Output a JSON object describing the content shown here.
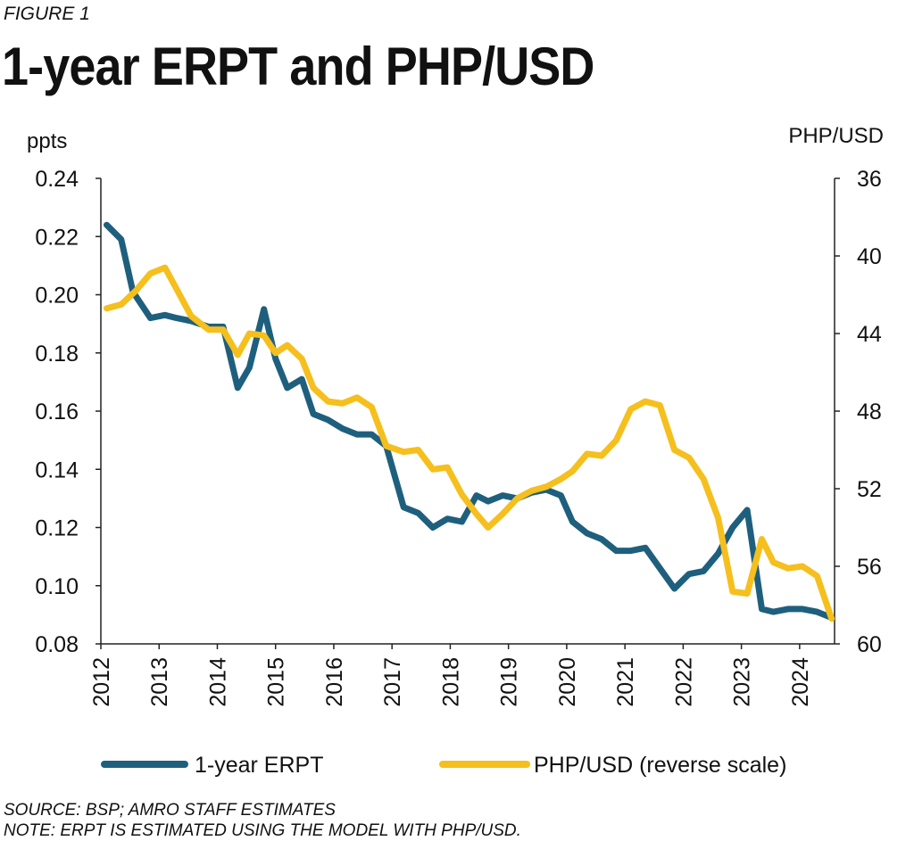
{
  "figure_label": "FIGURE 1",
  "title": "1-year ERPT and PHP/USD",
  "source": "SOURCE: BSP; AMRO STAFF ESTIMATES",
  "note": "NOTE: ERPT IS ESTIMATED USING THE MODEL WITH PHP/USD.",
  "colors": {
    "erpt": "#1f5f7e",
    "phpusd": "#f5bf1d"
  },
  "chart_data": {
    "type": "line",
    "ylabel_left": "ppts",
    "ylabel_right": "PHP/USD",
    "xlim": [
      2012,
      2024.6
    ],
    "ylim_left": [
      0.08,
      0.24
    ],
    "ylim_right": [
      36,
      60
    ],
    "right_axis_reversed": true,
    "x_ticks": [
      "2012",
      "2013",
      "2014",
      "2015",
      "2016",
      "2017",
      "2018",
      "2019",
      "2020",
      "2021",
      "2022",
      "2023",
      "2024"
    ],
    "left_ticks": [
      "0.08",
      "0.10",
      "0.12",
      "0.14",
      "0.16",
      "0.18",
      "0.20",
      "0.22",
      "0.24"
    ],
    "right_ticks": [
      "36",
      "40",
      "44",
      "48",
      "52",
      "56",
      "60"
    ],
    "legend_position": "bottom",
    "series": [
      {
        "name": "1-year ERPT",
        "axis": "left",
        "x": [
          2012.1,
          2012.35,
          2012.55,
          2012.85,
          2013.1,
          2013.3,
          2013.55,
          2013.85,
          2014.1,
          2014.35,
          2014.55,
          2014.8,
          2015.0,
          2015.2,
          2015.45,
          2015.65,
          2015.9,
          2016.15,
          2016.4,
          2016.65,
          2016.9,
          2017.2,
          2017.45,
          2017.7,
          2017.95,
          2018.2,
          2018.45,
          2018.65,
          2018.9,
          2019.15,
          2019.4,
          2019.65,
          2019.9,
          2020.1,
          2020.35,
          2020.6,
          2020.85,
          2021.1,
          2021.35,
          2021.6,
          2021.85,
          2022.1,
          2022.35,
          2022.6,
          2022.85,
          2023.1,
          2023.35,
          2023.55,
          2023.8,
          2024.05,
          2024.3,
          2024.55
        ],
        "y": [
          0.224,
          0.219,
          0.201,
          0.192,
          0.193,
          0.192,
          0.191,
          0.189,
          0.189,
          0.168,
          0.175,
          0.195,
          0.178,
          0.168,
          0.171,
          0.159,
          0.157,
          0.154,
          0.152,
          0.152,
          0.148,
          0.127,
          0.125,
          0.12,
          0.123,
          0.122,
          0.131,
          0.129,
          0.131,
          0.13,
          0.132,
          0.133,
          0.131,
          0.122,
          0.118,
          0.116,
          0.112,
          0.112,
          0.113,
          0.106,
          0.099,
          0.104,
          0.105,
          0.111,
          0.12,
          0.126,
          0.092,
          0.091,
          0.092,
          0.092,
          0.091,
          0.089
        ]
      },
      {
        "name": "PHP/USD (reverse scale)",
        "axis": "right",
        "x": [
          2012.1,
          2012.35,
          2012.6,
          2012.85,
          2013.1,
          2013.3,
          2013.55,
          2013.85,
          2014.1,
          2014.35,
          2014.55,
          2014.8,
          2015.0,
          2015.2,
          2015.45,
          2015.65,
          2015.9,
          2016.15,
          2016.4,
          2016.65,
          2016.9,
          2017.2,
          2017.45,
          2017.7,
          2017.95,
          2018.2,
          2018.45,
          2018.65,
          2018.9,
          2019.15,
          2019.4,
          2019.65,
          2019.9,
          2020.1,
          2020.35,
          2020.6,
          2020.85,
          2021.1,
          2021.35,
          2021.6,
          2021.85,
          2022.1,
          2022.35,
          2022.6,
          2022.85,
          2023.1,
          2023.35,
          2023.55,
          2023.8,
          2024.05,
          2024.3,
          2024.55
        ],
        "y": [
          42.7,
          42.5,
          41.8,
          40.9,
          40.6,
          41.7,
          43.1,
          43.8,
          43.8,
          45.1,
          44.0,
          44.1,
          45.0,
          44.6,
          45.3,
          46.8,
          47.5,
          47.6,
          47.3,
          47.8,
          49.8,
          50.1,
          50.0,
          51.0,
          50.9,
          52.3,
          53.3,
          54.0,
          53.3,
          52.5,
          52.1,
          51.9,
          51.5,
          51.1,
          50.2,
          50.3,
          49.5,
          47.9,
          47.5,
          47.7,
          50.0,
          50.4,
          51.5,
          53.5,
          57.3,
          57.4,
          54.6,
          55.8,
          56.1,
          56.0,
          56.5,
          58.7
        ]
      }
    ]
  }
}
